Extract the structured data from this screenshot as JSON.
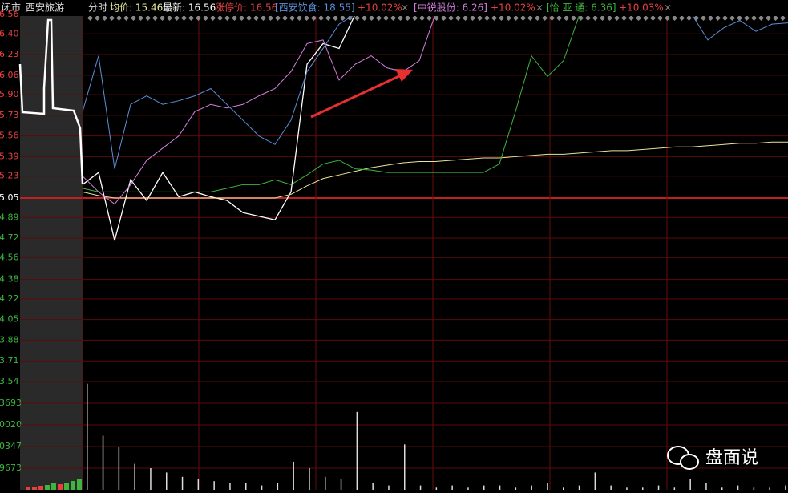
{
  "header": {
    "status": "闭市",
    "stock": "西安旅游",
    "mode": "分时",
    "avg": "均价: 15.46",
    "last": "最新: 16.56",
    "limit": "涨停价: 16.56",
    "compare": [
      {
        "name": "[西安饮食: 18.55]",
        "change": "+10.02%",
        "close": "×"
      },
      {
        "name": "[中锐股份: 6.26]",
        "change": "+10.02%",
        "close": "×"
      },
      {
        "name": "[怡 亚 通: 6.36]",
        "change": "+10.03%",
        "close": "×"
      }
    ]
  },
  "chart_data": {
    "type": "line",
    "ylim": [
      3.54,
      6.56
    ],
    "yticks": [
      6.56,
      {
        "value": 6.4,
        "label": "6.40"
      },
      6.23,
      6.06,
      {
        "value": 5.9,
        "label": "5.90"
      },
      5.73,
      5.56,
      5.39,
      5.23,
      5.05,
      4.89,
      4.72,
      4.56,
      4.38,
      4.22,
      4.05,
      3.88,
      3.71,
      3.54
    ],
    "grid": true,
    "series": [
      {
        "color": "#ffffff",
        "values": [
          5.16,
          5.26,
          4.7,
          5.2,
          5.03,
          5.26,
          5.06,
          5.1,
          5.06,
          5.03,
          4.93,
          4.9,
          4.87,
          5.1,
          6.15,
          6.32,
          6.28,
          6.56,
          6.56,
          6.56,
          6.56,
          6.56,
          6.56,
          6.56,
          6.56,
          6.56,
          6.56,
          6.56,
          6.56,
          6.56,
          6.56,
          6.56,
          6.56,
          6.56,
          6.56,
          6.56,
          6.56,
          6.56,
          6.56,
          6.56,
          6.56,
          6.56,
          6.56,
          6.56,
          6.56
        ]
      },
      {
        "color": "#e6e69a",
        "values": [
          5.1,
          5.07,
          5.05,
          5.05,
          5.05,
          5.05,
          5.05,
          5.05,
          5.05,
          5.05,
          5.05,
          5.05,
          5.05,
          5.08,
          5.15,
          5.21,
          5.24,
          5.27,
          5.3,
          5.32,
          5.34,
          5.35,
          5.35,
          5.36,
          5.37,
          5.38,
          5.38,
          5.39,
          5.4,
          5.41,
          5.41,
          5.42,
          5.43,
          5.44,
          5.44,
          5.45,
          5.46,
          5.47,
          5.47,
          5.48,
          5.49,
          5.5,
          5.5,
          5.51,
          5.51
        ]
      },
      {
        "color": "#5b8fd6",
        "values": [
          5.76,
          6.22,
          5.29,
          5.82,
          5.89,
          5.82,
          5.85,
          5.89,
          5.95,
          5.82,
          5.69,
          5.56,
          5.49,
          5.69,
          6.09,
          6.28,
          6.48,
          6.56,
          6.56,
          6.56,
          6.56,
          6.56,
          6.56,
          6.56,
          6.56,
          6.56,
          6.56,
          6.56,
          6.56,
          6.56,
          6.56,
          6.56,
          6.56,
          6.56,
          6.56,
          6.56,
          6.56,
          6.56,
          6.56,
          6.35,
          6.45,
          6.51,
          6.42,
          6.48,
          6.49
        ]
      },
      {
        "color": "#d580e0",
        "values": [
          5.23,
          5.1,
          5.0,
          5.16,
          5.36,
          5.46,
          5.56,
          5.76,
          5.82,
          5.79,
          5.82,
          5.89,
          5.95,
          6.09,
          6.32,
          6.35,
          6.02,
          6.15,
          6.22,
          6.12,
          6.09,
          6.18,
          6.56,
          6.56,
          6.56,
          6.56,
          6.56,
          6.56,
          6.56,
          6.56,
          6.56,
          6.56,
          6.56,
          6.56,
          6.56,
          6.56,
          6.56,
          6.56,
          6.56,
          6.56,
          6.56,
          6.56,
          6.56,
          6.56,
          6.56
        ]
      },
      {
        "color": "#3fb53f",
        "values": [
          5.13,
          5.1,
          5.1,
          5.1,
          5.1,
          5.1,
          5.1,
          5.1,
          5.1,
          5.13,
          5.16,
          5.16,
          5.2,
          5.16,
          5.24,
          5.33,
          5.36,
          5.29,
          5.28,
          5.26,
          5.26,
          5.26,
          5.26,
          5.26,
          5.26,
          5.26,
          5.33,
          5.76,
          6.22,
          6.05,
          6.18,
          6.56,
          6.56,
          6.56,
          6.56,
          6.56,
          6.56,
          6.56,
          6.56,
          6.56,
          6.56,
          6.56,
          6.56,
          6.56,
          6.56
        ]
      }
    ],
    "volume": {
      "color": "#dddddd",
      "ylim": [
        0,
        5
      ],
      "labels": [
        "3693",
        "0020",
        "0347",
        "9673"
      ],
      "values": [
        4.9,
        2.5,
        2.0,
        1.2,
        1.0,
        0.8,
        0.6,
        0.5,
        0.4,
        0.3,
        0.3,
        0.2,
        0.3,
        1.3,
        1.0,
        0.6,
        0.5,
        3.6,
        0.3,
        0.2,
        2.1,
        0.2,
        0.1,
        0.2,
        0.1,
        0.2,
        0.2,
        0.1,
        0.2,
        0.3,
        0.1,
        0.2,
        0.8,
        0.2,
        0.1,
        0.1,
        0.2,
        0.1,
        0.5,
        0.3,
        0.1,
        0.2,
        0.1,
        0.1,
        0.2
      ]
    }
  },
  "watermark": "盘面说"
}
